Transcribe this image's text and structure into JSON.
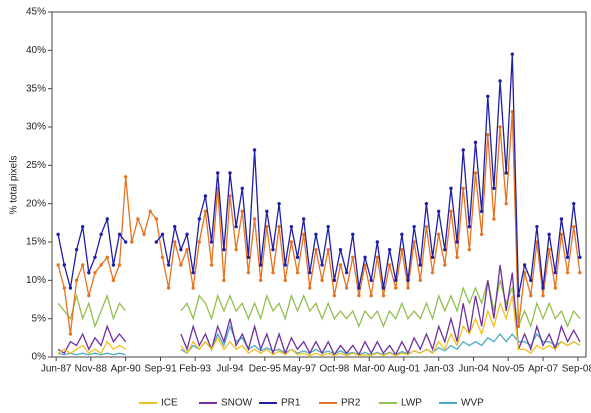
{
  "chart_data": {
    "type": "line",
    "y_label": "% total pixels",
    "xlim": [
      1987.25,
      2009.0
    ],
    "ylim": [
      0,
      45
    ],
    "xticks": [
      {
        "value": 1987.42,
        "label": "Jun-87"
      },
      {
        "value": 1988.83,
        "label": "Nov-88"
      },
      {
        "value": 1990.25,
        "label": "Apr-90"
      },
      {
        "value": 1991.67,
        "label": "Sep-91"
      },
      {
        "value": 1993.08,
        "label": "Feb-93"
      },
      {
        "value": 1994.5,
        "label": "Jul-94"
      },
      {
        "value": 1995.92,
        "label": "Dec-95"
      },
      {
        "value": 1997.33,
        "label": "May-97"
      },
      {
        "value": 1998.75,
        "label": "Oct-98"
      },
      {
        "value": 2000.17,
        "label": "Mar-00"
      },
      {
        "value": 2001.58,
        "label": "Aug-01"
      },
      {
        "value": 2003.0,
        "label": "Jan-03"
      },
      {
        "value": 2004.42,
        "label": "Jun-04"
      },
      {
        "value": 2005.83,
        "label": "Nov-05"
      },
      {
        "value": 2007.25,
        "label": "Apr-07"
      },
      {
        "value": 2008.67,
        "label": "Sep-08"
      }
    ],
    "yticks": [
      {
        "value": 0,
        "label": "0%"
      },
      {
        "value": 5,
        "label": "5%"
      },
      {
        "value": 10,
        "label": "10%"
      },
      {
        "value": 15,
        "label": "15%"
      },
      {
        "value": 20,
        "label": "20%"
      },
      {
        "value": 25,
        "label": "25%"
      },
      {
        "value": 30,
        "label": "30%"
      },
      {
        "value": 35,
        "label": "35%"
      },
      {
        "value": 40,
        "label": "40%"
      },
      {
        "value": 45,
        "label": "45%"
      }
    ],
    "grid": false,
    "legend": "bottom",
    "x": [
      1987.5,
      1987.75,
      1988,
      1988.25,
      1988.5,
      1988.75,
      1989,
      1989.25,
      1989.5,
      1989.75,
      1990,
      1990.25,
      1990.5,
      1990.75,
      1991,
      1991.25,
      1991.5,
      1991.75,
      1992,
      1992.25,
      1992.5,
      1992.75,
      1993,
      1993.25,
      1993.5,
      1993.75,
      1994,
      1994.25,
      1994.5,
      1994.75,
      1995,
      1995.25,
      1995.5,
      1995.75,
      1996,
      1996.25,
      1996.5,
      1996.75,
      1997,
      1997.25,
      1997.5,
      1997.75,
      1998,
      1998.25,
      1998.5,
      1998.75,
      1999,
      1999.25,
      1999.5,
      1999.75,
      2000,
      2000.25,
      2000.5,
      2000.75,
      2001,
      2001.25,
      2001.5,
      2001.75,
      2002,
      2002.25,
      2002.5,
      2002.75,
      2003,
      2003.25,
      2003.5,
      2003.75,
      2004,
      2004.25,
      2004.5,
      2004.75,
      2005,
      2005.25,
      2005.5,
      2005.75,
      2006,
      2006.25,
      2006.5,
      2006.75,
      2007,
      2007.25,
      2007.5,
      2007.75,
      2008,
      2008.25,
      2008.5,
      2008.75
    ],
    "series": [
      {
        "name": "ICE",
        "color": "#f0c020",
        "markers": false,
        "values": [
          0.5,
          1,
          0.5,
          1,
          1.5,
          0.5,
          1,
          0.5,
          2,
          1,
          1.5,
          1,
          null,
          null,
          null,
          null,
          null,
          null,
          null,
          null,
          1.5,
          0.5,
          2,
          1,
          2,
          1,
          2.5,
          1,
          2,
          1,
          1.5,
          0.5,
          1,
          0.5,
          1,
          0.3,
          0.8,
          0.3,
          1,
          0.3,
          0.5,
          0.2,
          0.5,
          0.2,
          0.5,
          0.2,
          0.5,
          0.2,
          0.5,
          0.2,
          0.3,
          0.2,
          0.5,
          0.2,
          0.5,
          0.2,
          0.5,
          0.3,
          0.8,
          0.5,
          1,
          0.5,
          2,
          1,
          3,
          1.5,
          4,
          3,
          5,
          3,
          6,
          4,
          7,
          5,
          8,
          1,
          1,
          0.5,
          1.5,
          1,
          1.5,
          1,
          2,
          1.5,
          2,
          1.5
        ]
      },
      {
        "name": "SNOW",
        "color": "#7030a0",
        "markers": false,
        "values": [
          1,
          0.5,
          2,
          1.5,
          3,
          1,
          2.5,
          1.5,
          4,
          2,
          3,
          2,
          null,
          null,
          null,
          null,
          null,
          null,
          null,
          null,
          3,
          1,
          4,
          1.5,
          3,
          1,
          4,
          2,
          5,
          1.5,
          3,
          1,
          4,
          1,
          3,
          0.5,
          3,
          0.5,
          2.5,
          1,
          2,
          0.5,
          2,
          0.5,
          2,
          0.3,
          1.5,
          0.5,
          1.5,
          0.3,
          2,
          0.5,
          2,
          0.5,
          1.5,
          0.3,
          2,
          0.5,
          2.5,
          1,
          3,
          1,
          4,
          2,
          5,
          2,
          7,
          3,
          8,
          4,
          10,
          5,
          12,
          6,
          11,
          1,
          3,
          1,
          4,
          1.5,
          3,
          1,
          4,
          2,
          3.5,
          2
        ]
      },
      {
        "name": "PR1",
        "color": "#1f1fa8",
        "markers": true,
        "values": [
          16,
          12,
          9,
          14,
          17,
          11,
          13,
          16,
          18,
          12,
          16,
          15,
          null,
          null,
          null,
          null,
          15,
          16,
          12,
          17,
          14,
          16,
          11,
          18,
          21,
          15,
          24,
          14,
          24,
          17,
          22,
          13,
          27,
          12,
          19,
          14,
          20,
          12,
          17,
          13,
          18,
          11,
          16,
          12,
          17,
          10,
          14,
          11,
          16,
          9,
          13,
          10,
          15,
          9,
          14,
          10,
          16,
          10,
          17,
          12,
          20,
          13,
          19,
          14,
          22,
          15,
          27,
          17,
          28,
          19,
          34,
          22,
          36,
          24,
          39.5,
          8,
          12,
          10,
          17,
          9,
          16,
          11,
          18,
          13,
          20,
          13
        ]
      },
      {
        "name": "PR2",
        "color": "#e6731f",
        "markers": true,
        "values": [
          12,
          9,
          3,
          10,
          12,
          8,
          11,
          12,
          13,
          10,
          12,
          23.5,
          15,
          18,
          16,
          19,
          18,
          13,
          9,
          15,
          12,
          14,
          9,
          15,
          19,
          12,
          22,
          10,
          21,
          14,
          19,
          11,
          18,
          10,
          17,
          11,
          17,
          10,
          15,
          11,
          16,
          9,
          14,
          10,
          14,
          8,
          12,
          9,
          13,
          8,
          12,
          8,
          13,
          8,
          12,
          9,
          14,
          9,
          15,
          10,
          17,
          11,
          16,
          12,
          19,
          13,
          22,
          14,
          24,
          16,
          29,
          18,
          30,
          20,
          32,
          4,
          11,
          8,
          15,
          8,
          14,
          9,
          16,
          11,
          17,
          11
        ]
      },
      {
        "name": "LWP",
        "color": "#92c050",
        "markers": false,
        "values": [
          7,
          6,
          5,
          8,
          5,
          7,
          4,
          6,
          8,
          5,
          7,
          6,
          null,
          null,
          null,
          null,
          null,
          null,
          null,
          null,
          6,
          7,
          5,
          8,
          7,
          5,
          8,
          6,
          8,
          6,
          7,
          5,
          7,
          5,
          8,
          6,
          7,
          5,
          8,
          6,
          8,
          6,
          7,
          5,
          7,
          5,
          6,
          5,
          6,
          4,
          6,
          5,
          6,
          4,
          6,
          5,
          7,
          5,
          6,
          5,
          7,
          5,
          8,
          6,
          8,
          6,
          9,
          7,
          9,
          7,
          10,
          6,
          10,
          7,
          9,
          4,
          6,
          4,
          7,
          5,
          7,
          5,
          6,
          4,
          6,
          5
        ]
      },
      {
        "name": "WVP",
        "color": "#4bacc6",
        "markers": false,
        "values": [
          0.5,
          0.3,
          0.5,
          0.3,
          0.5,
          0.3,
          0.5,
          0.3,
          0.5,
          0.3,
          0.5,
          0.3,
          null,
          null,
          null,
          null,
          null,
          null,
          null,
          null,
          1,
          0.5,
          1.5,
          1,
          2,
          1,
          3,
          1.5,
          4,
          2,
          2.5,
          1,
          1.5,
          0.8,
          1.2,
          0.8,
          1,
          0.5,
          1,
          0.5,
          0.8,
          0.5,
          1,
          0.5,
          0.8,
          0.4,
          0.8,
          0.4,
          0.6,
          0.3,
          0.6,
          0.3,
          0.6,
          0.3,
          0.6,
          0.3,
          0.7,
          0.4,
          0.8,
          0.5,
          1,
          0.6,
          1.2,
          0.8,
          1.5,
          1,
          2,
          1.5,
          2,
          1.5,
          2.5,
          2,
          3,
          2,
          3,
          2,
          2,
          1.5,
          3,
          2,
          2,
          1.5,
          2,
          1.5,
          2,
          1.5
        ]
      }
    ]
  }
}
